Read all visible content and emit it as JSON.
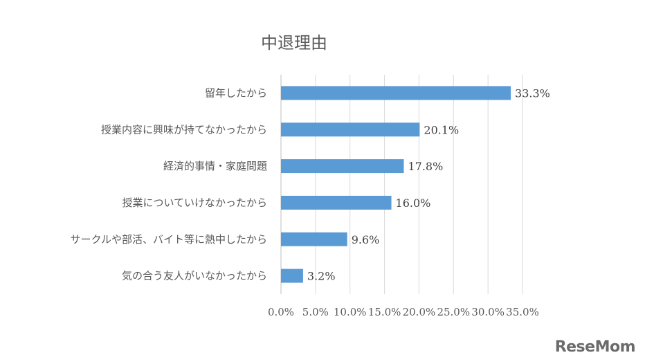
{
  "chart_data": {
    "type": "bar",
    "orientation": "horizontal",
    "title": "中退理由",
    "categories": [
      "留年したから",
      "授業内容に興味が持てなかったから",
      "経済的事情・家庭問題",
      "授業についていけなかったから",
      "サークルや部活、バイト等に熱中したから",
      "気の合う友人がいなかったから"
    ],
    "values": [
      33.3,
      20.1,
      17.8,
      16.0,
      9.6,
      3.2
    ],
    "value_labels": [
      "33.3%",
      "20.1%",
      "17.8%",
      "16.0%",
      "9.6%",
      "3.2%"
    ],
    "xlim": [
      0,
      35
    ],
    "xticks": [
      0,
      5,
      10,
      15,
      20,
      25,
      30,
      35
    ],
    "xtick_labels": [
      "0.0%",
      "5.0%",
      "10.0%",
      "15.0%",
      "20.0%",
      "25.0%",
      "30.0%",
      "35.0%"
    ],
    "grid": true,
    "legend": "none",
    "bar_color": "#5b9bd5"
  },
  "logo": {
    "text": "ReseMom"
  }
}
